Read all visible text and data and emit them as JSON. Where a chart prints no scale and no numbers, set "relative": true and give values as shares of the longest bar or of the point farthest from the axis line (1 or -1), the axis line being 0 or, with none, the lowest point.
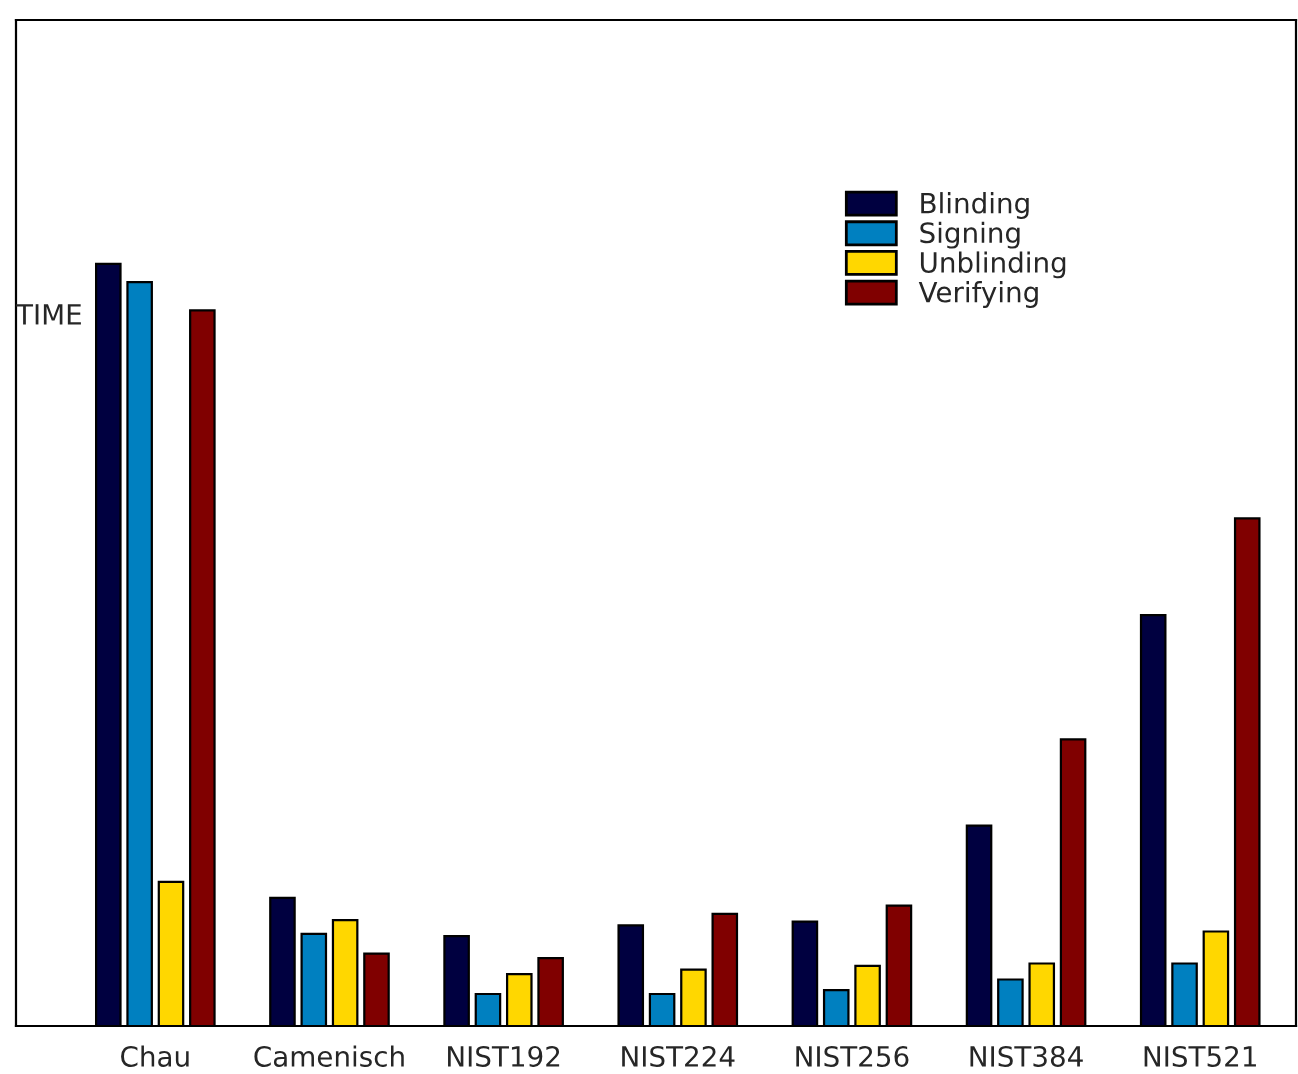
{
  "chart_data": {
    "type": "bar",
    "relative": true,
    "ylabel": "TIME",
    "categories": [
      "Chau",
      "Camenisch",
      "NIST192",
      "NIST224",
      "NIST256",
      "NIST384",
      "NIST521"
    ],
    "series": [
      {
        "name": "Blinding",
        "color": "#000040",
        "values": [
          1.0,
          0.168,
          0.118,
          0.132,
          0.137,
          0.263,
          0.539
        ]
      },
      {
        "name": "Signing",
        "color": "#0080c0",
        "values": [
          0.976,
          0.121,
          0.042,
          0.042,
          0.047,
          0.061,
          0.082
        ]
      },
      {
        "name": "Unblinding",
        "color": "#ffd700",
        "values": [
          0.189,
          0.139,
          0.068,
          0.074,
          0.079,
          0.082,
          0.124
        ]
      },
      {
        "name": "Verifying",
        "color": "#800000",
        "values": [
          0.939,
          0.095,
          0.089,
          0.147,
          0.158,
          0.376,
          0.666
        ]
      }
    ],
    "legend": "top right",
    "grid": false
  }
}
